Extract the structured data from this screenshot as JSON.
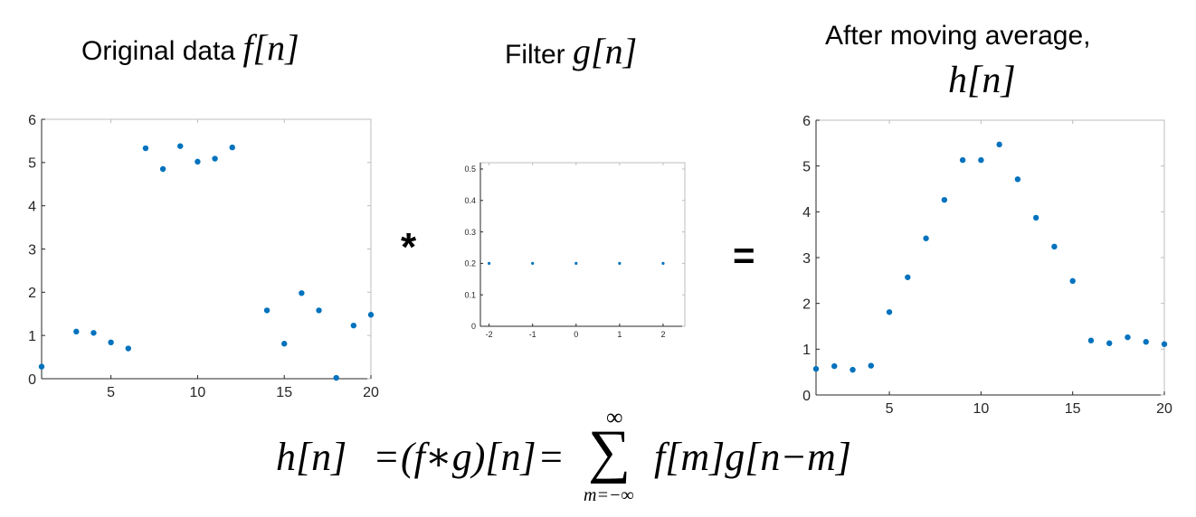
{
  "titles": {
    "left_text": "Original data ",
    "left_math": "f[n]",
    "middle_text": "Filter ",
    "middle_math": "g[n]",
    "right_text": "After moving average,",
    "right_math": "h[n]"
  },
  "operators": {
    "convolve": "*",
    "equals": "="
  },
  "formula": {
    "lhs": "h[n]",
    "eq1": "=",
    "conv": "(f∗g)[n]",
    "eq2": "=",
    "sum": "∑",
    "upper": "∞",
    "lower": "m=−∞",
    "term": "f[m]g[n−m]"
  },
  "colors": {
    "marker": "#0072BD",
    "axis": "#262626"
  },
  "chart_data": [
    {
      "type": "scatter",
      "x": [
        1,
        2,
        3,
        4,
        5,
        6,
        7,
        8,
        9,
        10,
        11,
        12,
        13,
        14,
        15,
        16,
        17,
        18,
        19,
        20
      ],
      "y": [
        0.28,
        null,
        1.09,
        1.06,
        0.84,
        0.7,
        5.33,
        4.85,
        5.38,
        5.02,
        5.09,
        5.35,
        null,
        1.58,
        0.81,
        1.98,
        1.58,
        0.02,
        1.23,
        1.48
      ],
      "xlim": [
        1,
        20
      ],
      "ylim": [
        0,
        6
      ],
      "xticks": [
        "5",
        "10",
        "15",
        "20"
      ],
      "yticks": [
        "0",
        "1",
        "2",
        "3",
        "4",
        "5",
        "6"
      ]
    },
    {
      "type": "scatter",
      "x": [
        -2,
        -1,
        0,
        1,
        2
      ],
      "y": [
        0.2,
        0.2,
        0.2,
        0.2,
        0.2
      ],
      "xlim": [
        -2.2,
        2.5
      ],
      "ylim": [
        0,
        0.52
      ],
      "xticks": [
        "-2",
        "-1",
        "0",
        "1",
        "2"
      ],
      "yticks": [
        "0",
        "0.1",
        "0.2",
        "0.3",
        "0.4",
        "0.5"
      ]
    },
    {
      "type": "scatter",
      "x": [
        1,
        2,
        3,
        4,
        5,
        6,
        7,
        8,
        9,
        10,
        11,
        12,
        13,
        14,
        15,
        16,
        17,
        18,
        19,
        20
      ],
      "y": [
        0.57,
        0.63,
        0.55,
        0.64,
        1.81,
        2.57,
        3.42,
        4.26,
        5.13,
        5.13,
        5.47,
        4.71,
        3.87,
        3.24,
        2.49,
        1.19,
        1.13,
        1.26,
        1.16,
        1.11
      ],
      "xlim": [
        1,
        20
      ],
      "ylim": [
        0,
        6
      ],
      "xticks": [
        "5",
        "10",
        "15",
        "20"
      ],
      "yticks": [
        "0",
        "1",
        "2",
        "3",
        "4",
        "5",
        "6"
      ]
    }
  ]
}
